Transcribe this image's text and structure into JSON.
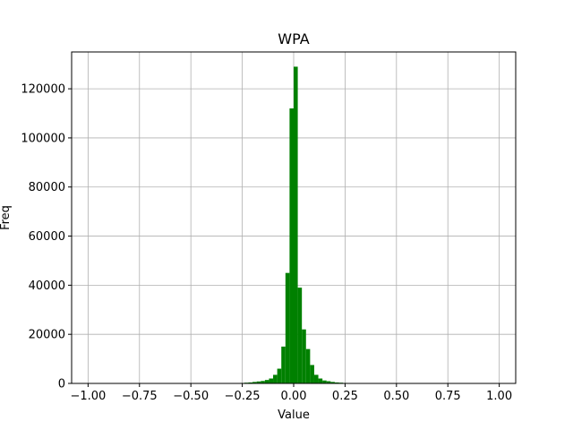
{
  "chart_data": {
    "type": "bar",
    "title": "WPA",
    "xlabel": "Value",
    "ylabel": "Freq",
    "xlim": [
      -1.08,
      1.08
    ],
    "ylim": [
      0,
      135000
    ],
    "xticks": [
      -1.0,
      -0.75,
      -0.5,
      -0.25,
      0.0,
      0.25,
      0.5,
      0.75,
      1.0
    ],
    "xtick_labels": [
      "−1.00",
      "−0.75",
      "−0.50",
      "−0.25",
      "0.00",
      "0.25",
      "0.50",
      "0.75",
      "1.00"
    ],
    "yticks": [
      0,
      20000,
      40000,
      60000,
      80000,
      100000,
      120000
    ],
    "ytick_labels": [
      "0",
      "20000",
      "40000",
      "60000",
      "80000",
      "100000",
      "120000"
    ],
    "grid": true,
    "bar_color": "#008000",
    "bin_width": 0.02,
    "bins": [
      {
        "x": -0.26,
        "value": 200
      },
      {
        "x": -0.24,
        "value": 300
      },
      {
        "x": -0.22,
        "value": 400
      },
      {
        "x": -0.2,
        "value": 600
      },
      {
        "x": -0.18,
        "value": 800
      },
      {
        "x": -0.16,
        "value": 1000
      },
      {
        "x": -0.14,
        "value": 1400
      },
      {
        "x": -0.12,
        "value": 2000
      },
      {
        "x": -0.1,
        "value": 3500
      },
      {
        "x": -0.08,
        "value": 6000
      },
      {
        "x": -0.06,
        "value": 15000
      },
      {
        "x": -0.04,
        "value": 45000
      },
      {
        "x": -0.02,
        "value": 112000
      },
      {
        "x": 0.0,
        "value": 129000
      },
      {
        "x": 0.02,
        "value": 39000
      },
      {
        "x": 0.04,
        "value": 22000
      },
      {
        "x": 0.06,
        "value": 14000
      },
      {
        "x": 0.08,
        "value": 7500
      },
      {
        "x": 0.1,
        "value": 3500
      },
      {
        "x": 0.12,
        "value": 2000
      },
      {
        "x": 0.14,
        "value": 1200
      },
      {
        "x": 0.16,
        "value": 900
      },
      {
        "x": 0.18,
        "value": 600
      },
      {
        "x": 0.2,
        "value": 400
      },
      {
        "x": 0.22,
        "value": 300
      },
      {
        "x": 0.24,
        "value": 200
      }
    ]
  }
}
